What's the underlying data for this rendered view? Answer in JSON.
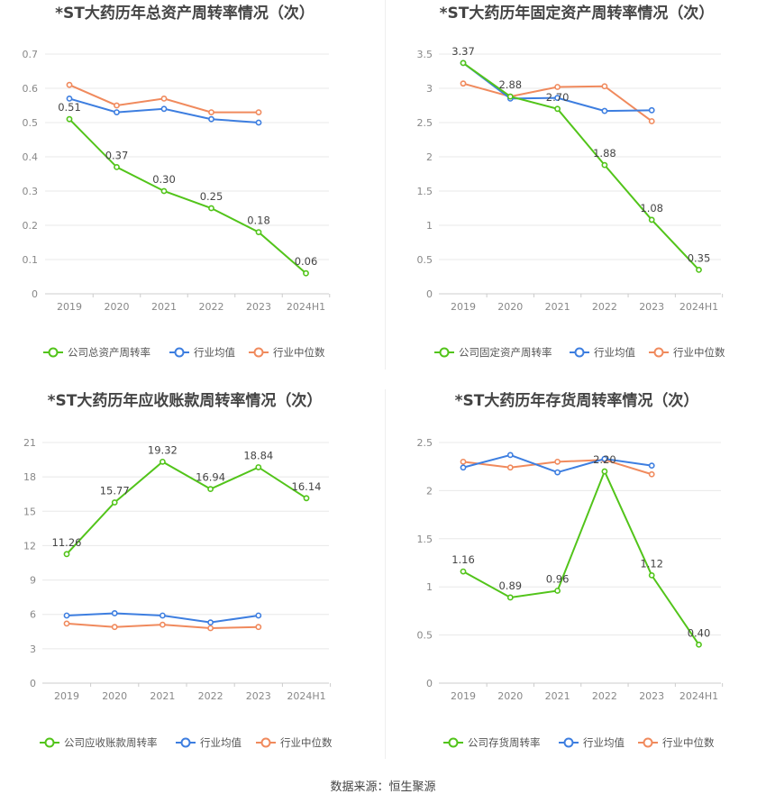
{
  "source_text": "数据来源：恒生聚源",
  "legend_labels": {
    "industry_avg": "行业均值",
    "industry_median": "行业中位数"
  },
  "colors": {
    "company": "#52c41a",
    "industry_avg": "#3d7ee0",
    "industry_median": "#f08a5d",
    "grid": "#e8e8e8",
    "axis_text": "#888888",
    "title": "#444444"
  },
  "chart_data": [
    {
      "type": "line",
      "title": "*ST大药历年总资产周转率情况（次）",
      "categories": [
        "2019",
        "2020",
        "2021",
        "2022",
        "2023",
        "2024H1"
      ],
      "ylim": [
        0,
        0.7
      ],
      "yticks": [
        "0",
        "0.1",
        "0.2",
        "0.3",
        "0.4",
        "0.5",
        "0.6",
        "0.7"
      ],
      "grid": true,
      "legend": "bottom",
      "series": [
        {
          "name": "公司总资产周转率",
          "key": "company",
          "values": [
            0.51,
            0.37,
            0.3,
            0.25,
            0.18,
            0.06
          ],
          "labels": [
            "0.51",
            "0.37",
            "0.30",
            "0.25",
            "0.18",
            "0.06"
          ]
        },
        {
          "name": "行业均值",
          "key": "industry_avg",
          "values": [
            0.57,
            0.53,
            0.54,
            0.51,
            0.5,
            null
          ]
        },
        {
          "name": "行业中位数",
          "key": "industry_median",
          "values": [
            0.61,
            0.55,
            0.57,
            0.53,
            0.53,
            null
          ]
        }
      ]
    },
    {
      "type": "line",
      "title": "*ST大药历年固定资产周转率情况（次）",
      "categories": [
        "2019",
        "2020",
        "2021",
        "2022",
        "2023",
        "2024H1"
      ],
      "ylim": [
        0,
        3.5
      ],
      "yticks": [
        "0",
        "0.5",
        "1",
        "1.5",
        "2",
        "2.5",
        "3",
        "3.5"
      ],
      "grid": true,
      "legend": "bottom",
      "series": [
        {
          "name": "公司固定资产周转率",
          "key": "company",
          "values": [
            3.37,
            2.88,
            2.7,
            1.88,
            1.08,
            0.35
          ],
          "labels": [
            "3.37",
            "2.88",
            "2.70",
            "1.88",
            "1.08",
            "0.35"
          ]
        },
        {
          "name": "行业均值",
          "key": "industry_avg",
          "values": [
            3.37,
            2.85,
            2.86,
            2.67,
            2.68,
            null
          ]
        },
        {
          "name": "行业中位数",
          "key": "industry_median",
          "values": [
            3.07,
            2.88,
            3.02,
            3.03,
            2.52,
            null
          ]
        }
      ]
    },
    {
      "type": "line",
      "title": "*ST大药历年应收账款周转率情况（次）",
      "categories": [
        "2019",
        "2020",
        "2021",
        "2022",
        "2023",
        "2024H1"
      ],
      "ylim": [
        0,
        21
      ],
      "yticks": [
        "0",
        "3",
        "6",
        "9",
        "12",
        "15",
        "18",
        "21"
      ],
      "grid": true,
      "legend": "bottom",
      "series": [
        {
          "name": "公司应收账款周转率",
          "key": "company",
          "values": [
            11.26,
            15.77,
            19.32,
            16.94,
            18.84,
            16.14
          ],
          "labels": [
            "11.26",
            "15.77",
            "19.32",
            "16.94",
            "18.84",
            "16.14"
          ]
        },
        {
          "name": "行业均值",
          "key": "industry_avg",
          "values": [
            5.9,
            6.1,
            5.9,
            5.3,
            5.9,
            null
          ]
        },
        {
          "name": "行业中位数",
          "key": "industry_median",
          "values": [
            5.2,
            4.9,
            5.1,
            4.8,
            4.9,
            null
          ]
        }
      ]
    },
    {
      "type": "line",
      "title": "*ST大药历年存货周转率情况（次）",
      "categories": [
        "2019",
        "2020",
        "2021",
        "2022",
        "2023",
        "2024H1"
      ],
      "ylim": [
        0,
        2.5
      ],
      "yticks": [
        "0",
        "0.5",
        "1",
        "1.5",
        "2",
        "2.5"
      ],
      "grid": true,
      "legend": "bottom",
      "series": [
        {
          "name": "公司存货周转率",
          "key": "company",
          "values": [
            1.16,
            0.89,
            0.96,
            2.2,
            1.12,
            0.4
          ],
          "labels": [
            "1.16",
            "0.89",
            "0.96",
            "2.20",
            "1.12",
            "0.40"
          ]
        },
        {
          "name": "行业均值",
          "key": "industry_avg",
          "values": [
            2.24,
            2.37,
            2.19,
            2.33,
            2.26,
            null
          ]
        },
        {
          "name": "行业中位数",
          "key": "industry_median",
          "values": [
            2.3,
            2.24,
            2.3,
            2.32,
            2.17,
            null
          ]
        }
      ]
    }
  ]
}
